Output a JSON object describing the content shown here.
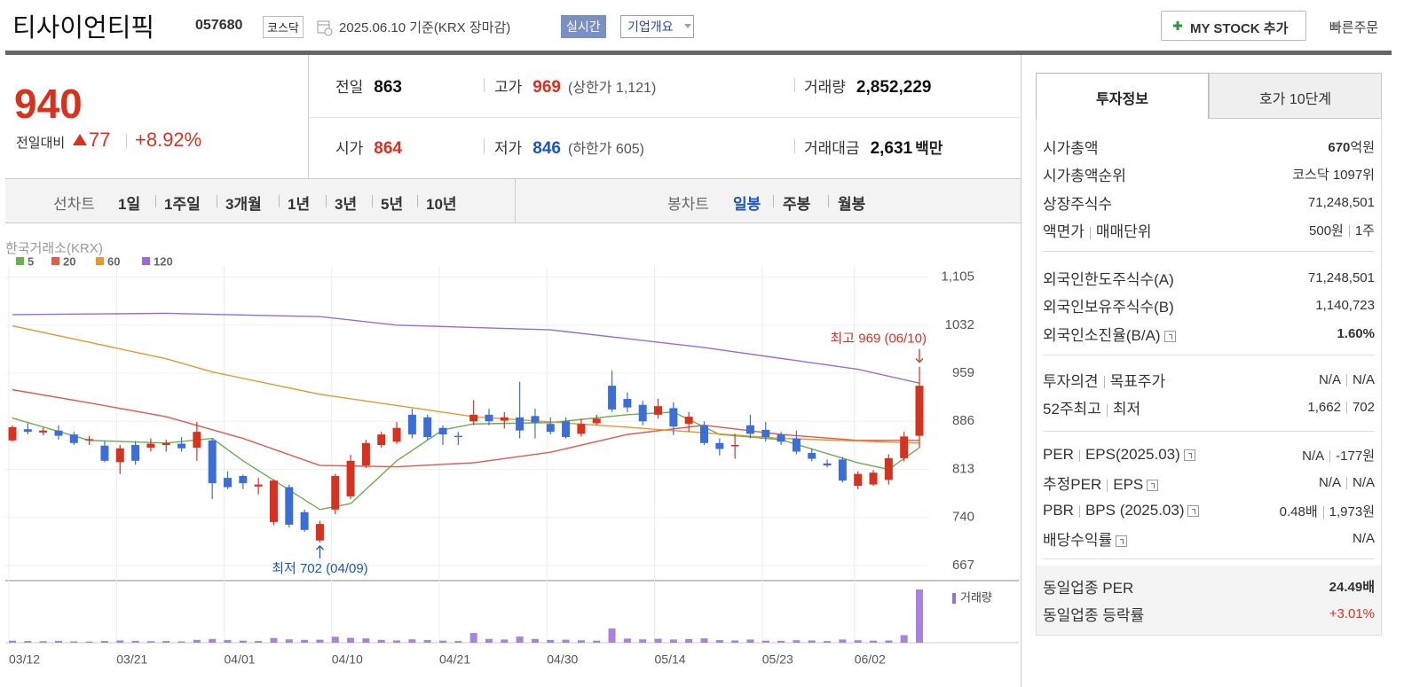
{
  "header": {
    "name": "티사이언티픽",
    "code": "057680",
    "market": "코스닥",
    "date": "2025.06.10 기준(KRX 장마감)",
    "realtime": "실시간",
    "company_info": "기업개요",
    "my_stock": "MY STOCK 추가",
    "quick_order": "빠른주문"
  },
  "quote": {
    "price": "940",
    "change_label": "전일대비",
    "change": "77",
    "change_rate": "+8.92%",
    "items": [
      {
        "label": "전일",
        "value": "863",
        "color": "#111111"
      },
      {
        "label": "고가",
        "value": "969",
        "note": "(상한가 1,121)",
        "color": "#d8321f"
      },
      {
        "label": "거래량",
        "value": "2,852,229",
        "color": "#111111"
      },
      {
        "label": "시가",
        "value": "864",
        "color": "#d8321f"
      },
      {
        "label": "저가",
        "value": "846",
        "note": "(하한가 605)",
        "color": "#1a55c4"
      },
      {
        "label": "거래대금",
        "value": "2,631",
        "unit": "백만",
        "color": "#111111"
      }
    ]
  },
  "tabs": {
    "line_chart": {
      "label": "선차트",
      "periods": [
        "1일",
        "1주일",
        "3개월",
        "1년",
        "3년",
        "5년",
        "10년"
      ]
    },
    "candle_chart": {
      "label": "봉차트",
      "periods": [
        "일봉",
        "주봉",
        "월봉"
      ],
      "selected": 0
    }
  },
  "chart_data": {
    "type": "candlestick",
    "source": "한국거래소(KRX)",
    "volume_label": "거래량",
    "annotations": {
      "high": "최고 969 (06/10)",
      "low": "최저 702 (04/09)"
    },
    "up_color": "#d8321f",
    "down_color": "#3a6fd9",
    "volume_color": "#9b6bd6",
    "grid": true,
    "categories": [
      "03/12",
      null,
      null,
      null,
      null,
      null,
      null,
      "03/21",
      null,
      null,
      null,
      null,
      null,
      null,
      "04/01",
      null,
      null,
      null,
      null,
      null,
      null,
      "04/10",
      null,
      null,
      null,
      null,
      null,
      null,
      "04/21",
      null,
      null,
      null,
      null,
      null,
      null,
      "04/30",
      null,
      null,
      null,
      null,
      null,
      null,
      "05/14",
      null,
      null,
      null,
      null,
      null,
      null,
      "05/23",
      null,
      null,
      null,
      null,
      null,
      "06/02",
      null,
      null,
      null,
      null
    ],
    "open": [
      857,
      874,
      869,
      872,
      866,
      857,
      849,
      824,
      850,
      846,
      850,
      852,
      846,
      857,
      800,
      803,
      787,
      733,
      786,
      748,
      705,
      752,
      772,
      819,
      850,
      855,
      896,
      892,
      876,
      864,
      886,
      896,
      887,
      892,
      894,
      882,
      886,
      867,
      883,
      940,
      920,
      911,
      896,
      906,
      882,
      880,
      853,
      848,
      880,
      873,
      866,
      860,
      838,
      822,
      828,
      788,
      790,
      797,
      830,
      864
    ],
    "high": [
      880,
      883,
      876,
      880,
      870,
      864,
      856,
      850,
      856,
      860,
      858,
      862,
      885,
      860,
      810,
      805,
      800,
      798,
      790,
      752,
      735,
      806,
      835,
      858,
      870,
      885,
      905,
      896,
      880,
      870,
      918,
      905,
      900,
      946,
      905,
      892,
      892,
      890,
      896,
      963,
      930,
      917,
      920,
      915,
      900,
      886,
      860,
      867,
      896,
      885,
      870,
      872,
      845,
      828,
      832,
      810,
      812,
      836,
      870,
      969
    ],
    "low": [
      855,
      866,
      865,
      858,
      850,
      850,
      824,
      806,
      820,
      840,
      840,
      840,
      826,
      768,
      783,
      783,
      775,
      728,
      725,
      718,
      702,
      745,
      768,
      815,
      846,
      852,
      860,
      858,
      850,
      850,
      880,
      880,
      875,
      860,
      860,
      866,
      860,
      863,
      880,
      900,
      900,
      880,
      890,
      865,
      870,
      850,
      834,
      829,
      860,
      855,
      850,
      836,
      825,
      816,
      793,
      783,
      788,
      790,
      825,
      846
    ],
    "close": [
      877,
      870,
      872,
      864,
      853,
      859,
      826,
      845,
      826,
      852,
      853,
      845,
      870,
      792,
      786,
      792,
      790,
      796,
      729,
      721,
      730,
      803,
      826,
      853,
      866,
      876,
      866,
      862,
      866,
      862,
      896,
      886,
      892,
      872,
      884,
      870,
      862,
      882,
      890,
      904,
      907,
      886,
      909,
      878,
      893,
      853,
      844,
      850,
      867,
      862,
      855,
      840,
      829,
      819,
      796,
      806,
      808,
      830,
      863,
      940
    ],
    "volume": [
      110000,
      90000,
      80000,
      100000,
      70000,
      60000,
      90000,
      120000,
      100000,
      80000,
      90000,
      70000,
      150000,
      200000,
      140000,
      110000,
      90000,
      250000,
      180000,
      150000,
      160000,
      320000,
      260000,
      230000,
      150000,
      120000,
      180000,
      140000,
      110000,
      90000,
      520000,
      200000,
      170000,
      330000,
      200000,
      150000,
      160000,
      130000,
      110000,
      760000,
      220000,
      180000,
      210000,
      170000,
      190000,
      230000,
      140000,
      120000,
      170000,
      110000,
      100000,
      130000,
      120000,
      90000,
      170000,
      130000,
      110000,
      120000,
      400000,
      2852229
    ],
    "moving_averages": [
      {
        "name": "5",
        "color": "#6ab04c",
        "x": [
          0,
          5,
          10,
          13,
          15,
          20,
          22,
          25,
          28,
          30,
          35,
          40,
          43,
          46,
          50,
          53,
          55,
          57,
          59
        ],
        "values": [
          891,
          857,
          853,
          860,
          826,
          752,
          761,
          826,
          873,
          882,
          884,
          896,
          900,
          866,
          858,
          837,
          823,
          813,
          846
        ]
      },
      {
        "name": "20",
        "color": "#e05a4f",
        "x": [
          0,
          5,
          10,
          15,
          20,
          25,
          30,
          35,
          40,
          45,
          50,
          55,
          59
        ],
        "values": [
          934,
          914,
          893,
          860,
          819,
          817,
          823,
          839,
          866,
          880,
          866,
          857,
          857
        ]
      },
      {
        "name": "60",
        "color": "#e8962e",
        "x": [
          0,
          10,
          13,
          20,
          30,
          40,
          50,
          59
        ],
        "values": [
          1031,
          981,
          961,
          927,
          893,
          877,
          860,
          853
        ]
      },
      {
        "name": "120",
        "color": "#9b6bd6",
        "x": [
          0,
          10,
          20,
          25,
          35,
          45,
          55,
          59
        ],
        "values": [
          1048,
          1050,
          1045,
          1032,
          1025,
          998,
          965,
          944
        ]
      }
    ],
    "ylim": [
      644,
      1122
    ],
    "yticks": [
      {
        "value": 1105,
        "label": "1,105"
      },
      1032,
      959,
      886,
      813,
      740,
      667
    ]
  },
  "side": {
    "tabs": [
      "투자정보",
      "호가 10단계"
    ],
    "sections": [
      [
        {
          "labels": [
            "시가총액"
          ],
          "values": [
            "670"
          ],
          "unit": "억원",
          "bold": true
        },
        {
          "labels": [
            "시가총액순위"
          ],
          "values": [
            "코스닥 1097위"
          ]
        },
        {
          "labels": [
            "상장주식수"
          ],
          "values": [
            "71,248,501"
          ]
        },
        {
          "labels": [
            "액면가",
            "매매단위"
          ],
          "values": [
            "500원",
            "1주"
          ]
        }
      ],
      [
        {
          "labels": [
            "외국인한도주식수(A)"
          ],
          "values": [
            "71,248,501"
          ]
        },
        {
          "labels": [
            "외국인보유주식수(B)"
          ],
          "values": [
            "1,140,723"
          ]
        },
        {
          "labels": [
            "외국인소진율(B/A)"
          ],
          "values": [
            "1.60%"
          ],
          "bold": true,
          "help": true
        }
      ],
      [
        {
          "labels": [
            "투자의견",
            "목표주가"
          ],
          "values": [
            "N/A",
            "N/A"
          ]
        },
        {
          "labels": [
            "52주최고",
            "최저"
          ],
          "values": [
            "1,662",
            "702"
          ]
        }
      ],
      [
        {
          "labels": [
            "PER",
            "EPS(2025.03)"
          ],
          "values": [
            "N/A",
            "-177원"
          ],
          "help": true
        },
        {
          "labels": [
            "추정PER",
            "EPS"
          ],
          "values": [
            "N/A",
            "N/A"
          ],
          "help": true
        },
        {
          "labels": [
            "PBR",
            "BPS (2025.03)"
          ],
          "values": [
            "0.48배",
            "1,973원"
          ],
          "help": true
        },
        {
          "labels": [
            "배당수익률"
          ],
          "values": [
            "N/A"
          ],
          "help": true
        }
      ],
      [
        {
          "labels": [
            "동일업종 PER"
          ],
          "values": [
            "24.49배"
          ],
          "bold": true
        },
        {
          "labels": [
            "동일업종 등락률"
          ],
          "values": [
            "+3.01%"
          ],
          "color": "#d8321f"
        }
      ]
    ]
  }
}
